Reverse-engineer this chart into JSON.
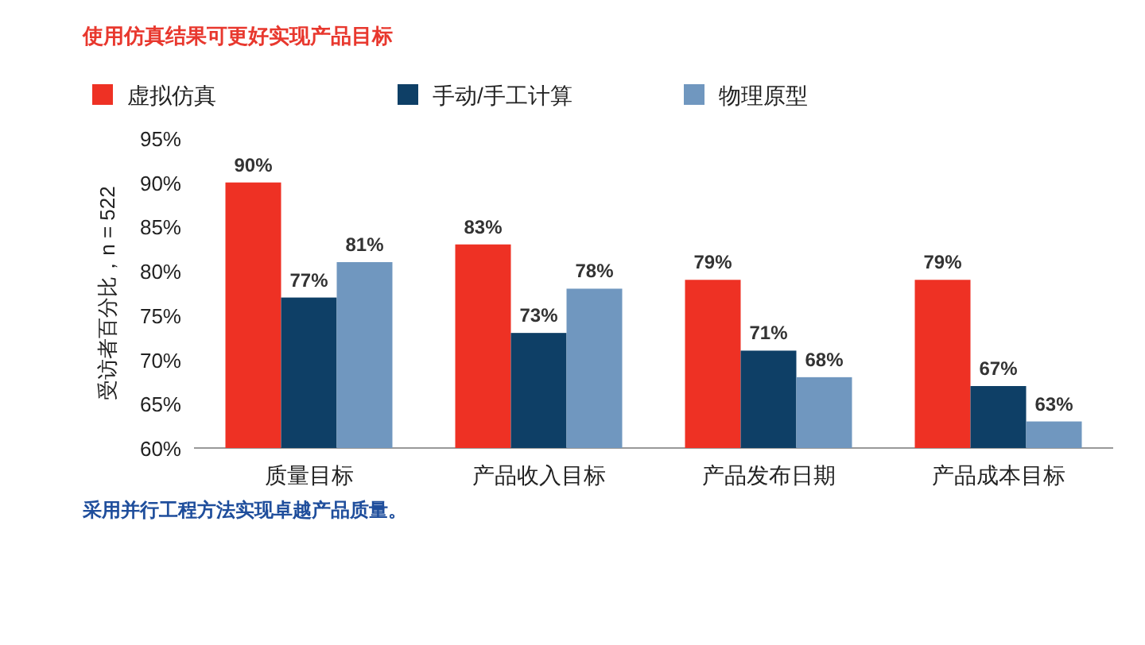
{
  "chart_data": {
    "type": "bar",
    "title": "使用仿真结果可更好实现产品目标",
    "ylabel": "受访者百分比，n = 522",
    "categories": [
      "质量目标",
      "产品收入目标",
      "产品发布日期",
      "产品成本目标"
    ],
    "series": [
      {
        "name": "虚拟仿真",
        "color": "#ee3124",
        "values": [
          90,
          83,
          79,
          79
        ],
        "value_labels": [
          "90%",
          "83%",
          "79%",
          "79%"
        ]
      },
      {
        "name": "手动/手工计算",
        "color": "#0e3f66",
        "values": [
          77,
          73,
          71,
          67
        ],
        "value_labels": [
          "77%",
          "73%",
          "71%",
          "67%"
        ]
      },
      {
        "name": "物理原型",
        "color": "#7097bf",
        "values": [
          81,
          78,
          68,
          63
        ],
        "value_labels": [
          "81%",
          "78%",
          "68%",
          "63%"
        ]
      }
    ],
    "ylim": [
      60,
      95
    ],
    "yticks": [
      {
        "value": 60,
        "label": "60%"
      },
      {
        "value": 65,
        "label": "65%"
      },
      {
        "value": 70,
        "label": "70%"
      },
      {
        "value": 75,
        "label": "75%"
      },
      {
        "value": 80,
        "label": "80%"
      },
      {
        "value": 85,
        "label": "85%"
      },
      {
        "value": 90,
        "label": "90%"
      },
      {
        "value": 95,
        "label": "95%"
      }
    ],
    "legend": "top",
    "annotations": [
      "采用并行工程方法实现卓越产品质量。"
    ]
  }
}
